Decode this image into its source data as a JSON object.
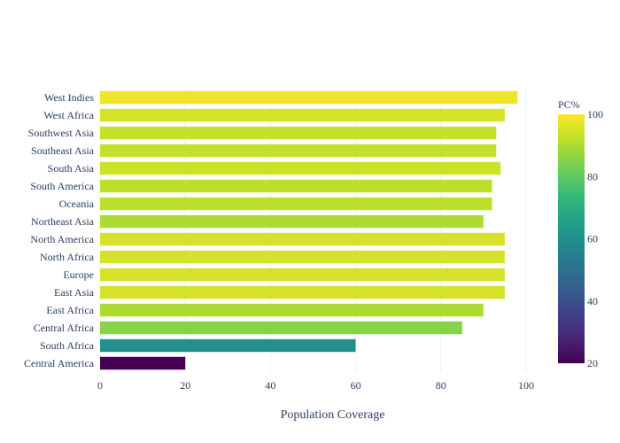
{
  "chart_data": {
    "type": "bar",
    "orientation": "horizontal",
    "categories": [
      "West Indies",
      "West Africa",
      "Southwest Asia",
      "Southeast Asia",
      "South Asia",
      "South America",
      "Oceania",
      "Northeast Asia",
      "North America",
      "North Africa",
      "Europe",
      "East Asia",
      "East Africa",
      "Central Africa",
      "South Africa",
      "Central America"
    ],
    "values": [
      98,
      95,
      93,
      93,
      94,
      92,
      92,
      90,
      95,
      95,
      95,
      95,
      90,
      85,
      60,
      20
    ],
    "title": "",
    "xlabel": "Population Coverage",
    "ylabel": "",
    "xlim": [
      0,
      105
    ],
    "xticks": [
      0,
      20,
      40,
      60,
      80,
      100
    ],
    "grid": true,
    "colorbar": {
      "title": "PC%",
      "range": [
        20,
        100
      ],
      "ticks": [
        20,
        40,
        60,
        80,
        100
      ],
      "colorscale": [
        "#440154",
        "#482878",
        "#3e4989",
        "#31688e",
        "#26828e",
        "#1f9e89",
        "#35b779",
        "#6ece58",
        "#b5de2b",
        "#fde725"
      ]
    }
  }
}
